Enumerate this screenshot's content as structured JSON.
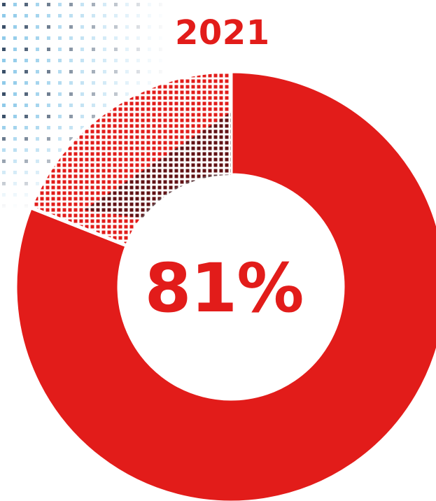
{
  "chart_data": {
    "type": "pie",
    "title": "2021",
    "donut": true,
    "center_label": "81%",
    "slices": [
      {
        "label": "",
        "value": 81,
        "color": "#e21c1a",
        "fill": "solid"
      },
      {
        "label": "",
        "value": 19,
        "color": "#e21c1a",
        "fill": "dotted-pattern"
      }
    ]
  }
}
